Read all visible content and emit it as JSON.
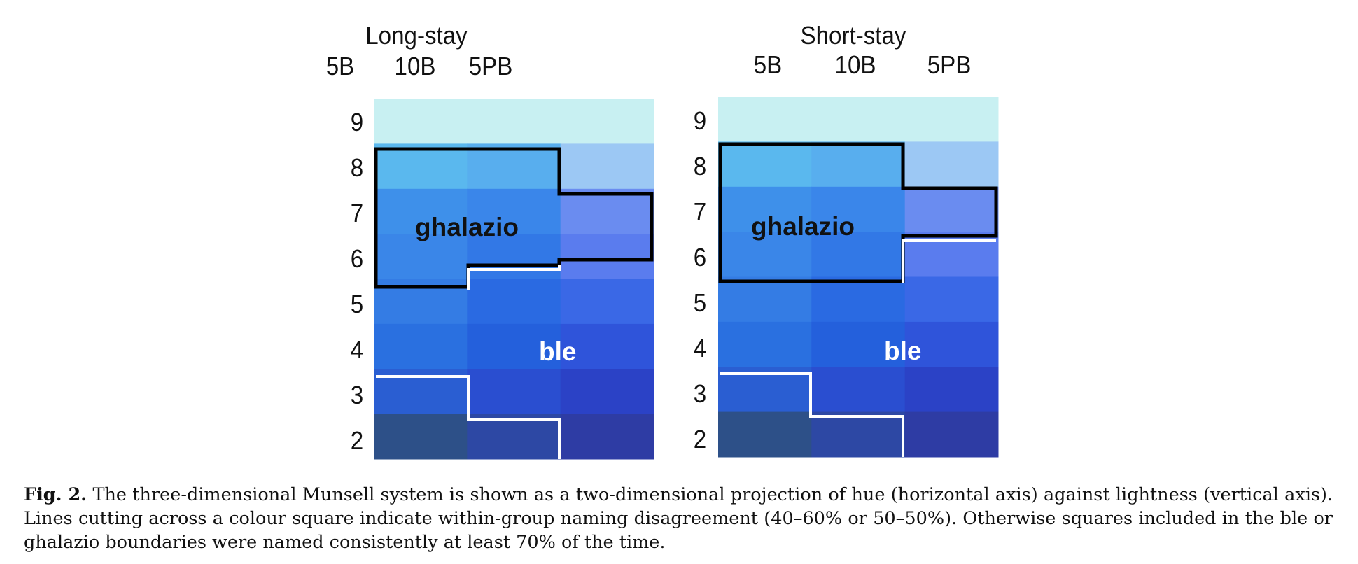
{
  "panels": [
    {
      "title": "Long-stay",
      "columns": [
        "5B",
        "10B",
        "5PB"
      ],
      "rows": [
        "9",
        "8",
        "7",
        "6",
        "5",
        "4",
        "3",
        "2"
      ],
      "ghalazio_label": "ghalazio",
      "ble_label": "ble"
    },
    {
      "title": "Short-stay",
      "columns": [
        "5B",
        "10B",
        "5PB"
      ],
      "rows": [
        "9",
        "8",
        "7",
        "6",
        "5",
        "4",
        "3",
        "2"
      ],
      "ghalazio_label": "ghalazio",
      "ble_label": "ble"
    }
  ],
  "caption": {
    "label": "Fig. 2.",
    "text": "The three-dimensional Munsell system is shown as a two-dimensional projection of hue (horizontal axis) against lightness (vertical axis). Lines cutting across a colour square indicate within-group naming disagreement (40–60% or 50–50%). Otherwise squares included in the ble or ghalazio boundaries were named consistently at least 70% of the time."
  },
  "colors": {
    "row9": "#c8f0f2",
    "row8": [
      "#5ab8ee",
      "#58aeee",
      "#9cc8f4"
    ],
    "row7": [
      "#3e90ea",
      "#3a86ea",
      "#6a8cf0"
    ],
    "row6": [
      "#3a86e8",
      "#3278e6",
      "#5a7cee"
    ],
    "row5": [
      "#347ce4",
      "#2a6ae2",
      "#3a68e6"
    ],
    "row4": [
      "#2a70e0",
      "#2460dc",
      "#2f54da"
    ],
    "row3": [
      "#2a5ed2",
      "#2a4ed0",
      "#2b42c6"
    ],
    "row2": [
      "#2d5088",
      "#2d48a4",
      "#2e3ca4"
    ],
    "ghalazio_border": "#000000",
    "ble_border": "#ffffff"
  }
}
